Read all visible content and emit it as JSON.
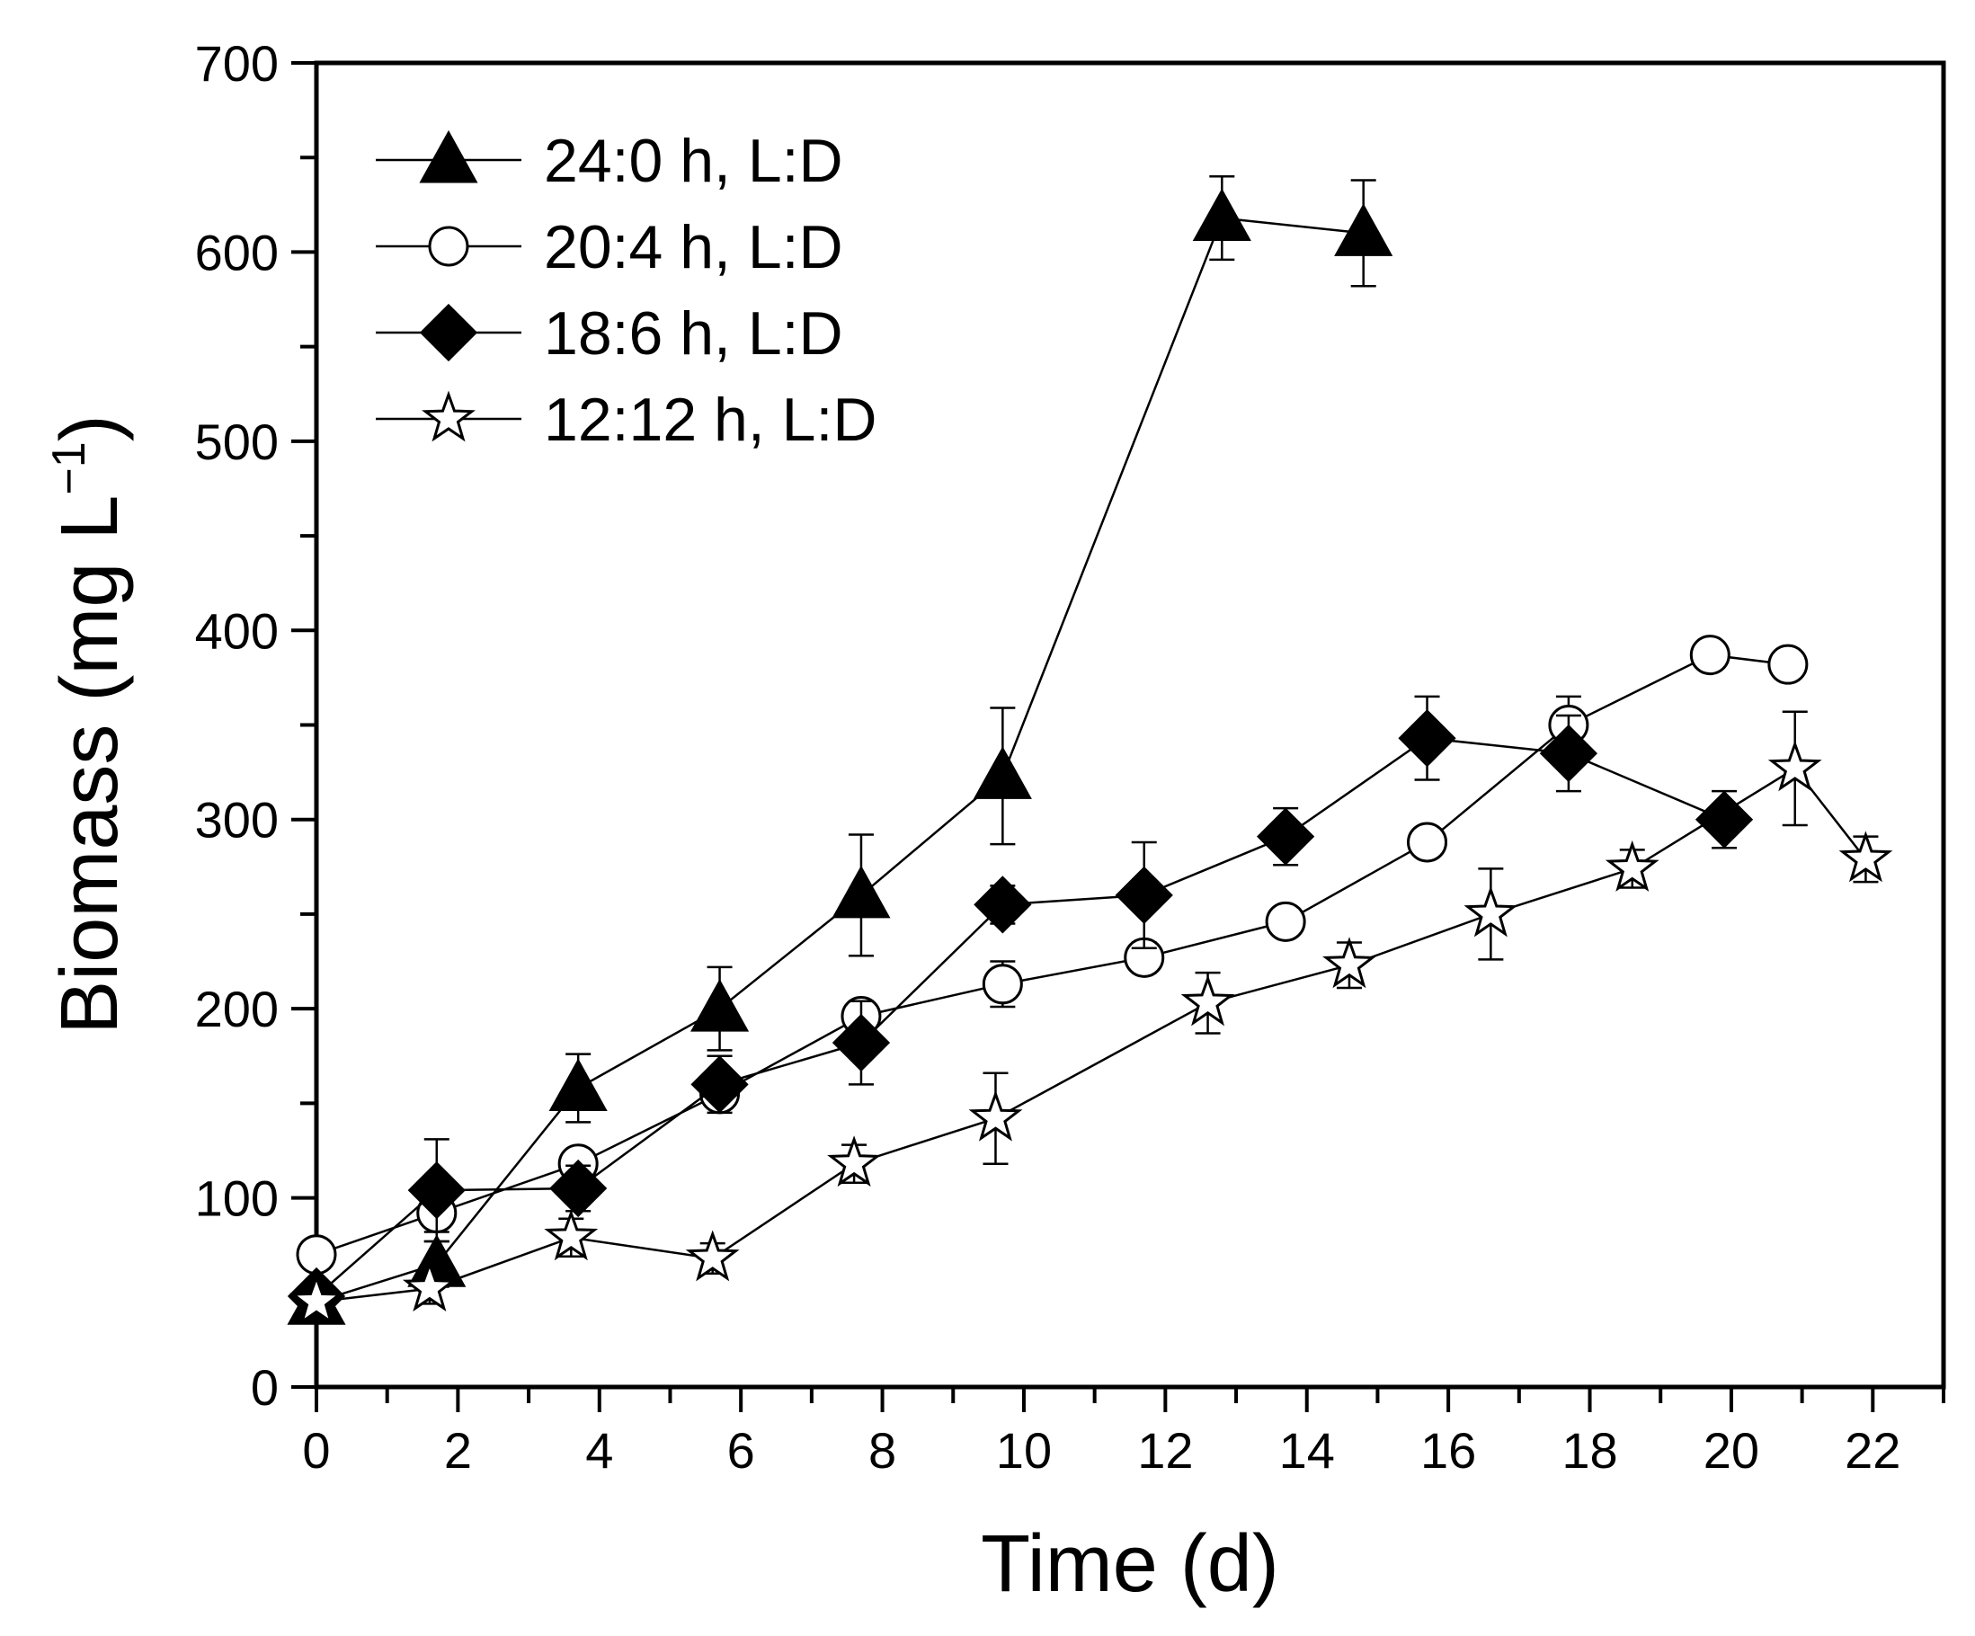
{
  "chart_data": {
    "type": "line",
    "title": "",
    "xlabel": "Time (d)",
    "ylabel": {
      "main": "Biomass (mg L",
      "sup": "−1",
      "close": ")"
    },
    "xlim": [
      0,
      23
    ],
    "ylim": [
      0,
      700
    ],
    "xticks": [
      0,
      2,
      4,
      6,
      8,
      10,
      12,
      14,
      16,
      18,
      20,
      22
    ],
    "yticks": [
      0,
      100,
      200,
      300,
      400,
      500,
      600,
      700
    ],
    "legend_position": "top-left",
    "series": [
      {
        "name": "24:0 h, L:D",
        "marker": "triangle",
        "x": [
          0,
          1.7,
          3.7,
          5.7,
          7.7,
          9.7,
          12.8,
          14.8
        ],
        "y": [
          45,
          65,
          158,
          200,
          260,
          323,
          618,
          610
        ],
        "err": [
          5,
          12,
          18,
          22,
          32,
          36,
          22,
          28
        ]
      },
      {
        "name": "20:4 h, L:D",
        "marker": "circle",
        "x": [
          0,
          1.7,
          3.7,
          5.7,
          7.7,
          9.7,
          11.7,
          13.7,
          15.7,
          17.7,
          19.7,
          20.8
        ],
        "y": [
          70,
          92,
          118,
          155,
          196,
          213,
          227,
          246,
          288,
          350,
          387,
          382
        ],
        "err": [
          5,
          10,
          6,
          6,
          6,
          12,
          8,
          6,
          6,
          15,
          6,
          6
        ]
      },
      {
        "name": "18:6 h, L:D",
        "marker": "diamond",
        "x": [
          0,
          1.7,
          3.7,
          5.7,
          7.7,
          9.7,
          11.7,
          13.7,
          15.7,
          17.7,
          19.9
        ],
        "y": [
          48,
          104,
          105,
          160,
          182,
          255,
          260,
          291,
          343,
          335,
          300
        ],
        "err": [
          5,
          27,
          12,
          15,
          22,
          10,
          28,
          15,
          22,
          20,
          15
        ]
      },
      {
        "name": "12:12 h, L:D",
        "marker": "star",
        "x": [
          0,
          1.6,
          3.6,
          5.6,
          7.6,
          9.6,
          12.6,
          14.6,
          16.6,
          18.6,
          20.9,
          21.9
        ],
        "y": [
          45,
          52,
          79,
          68,
          118,
          142,
          203,
          223,
          250,
          274,
          327,
          279
        ],
        "err": [
          4,
          8,
          10,
          8,
          10,
          24,
          16,
          12,
          24,
          10,
          30,
          12
        ]
      }
    ]
  }
}
